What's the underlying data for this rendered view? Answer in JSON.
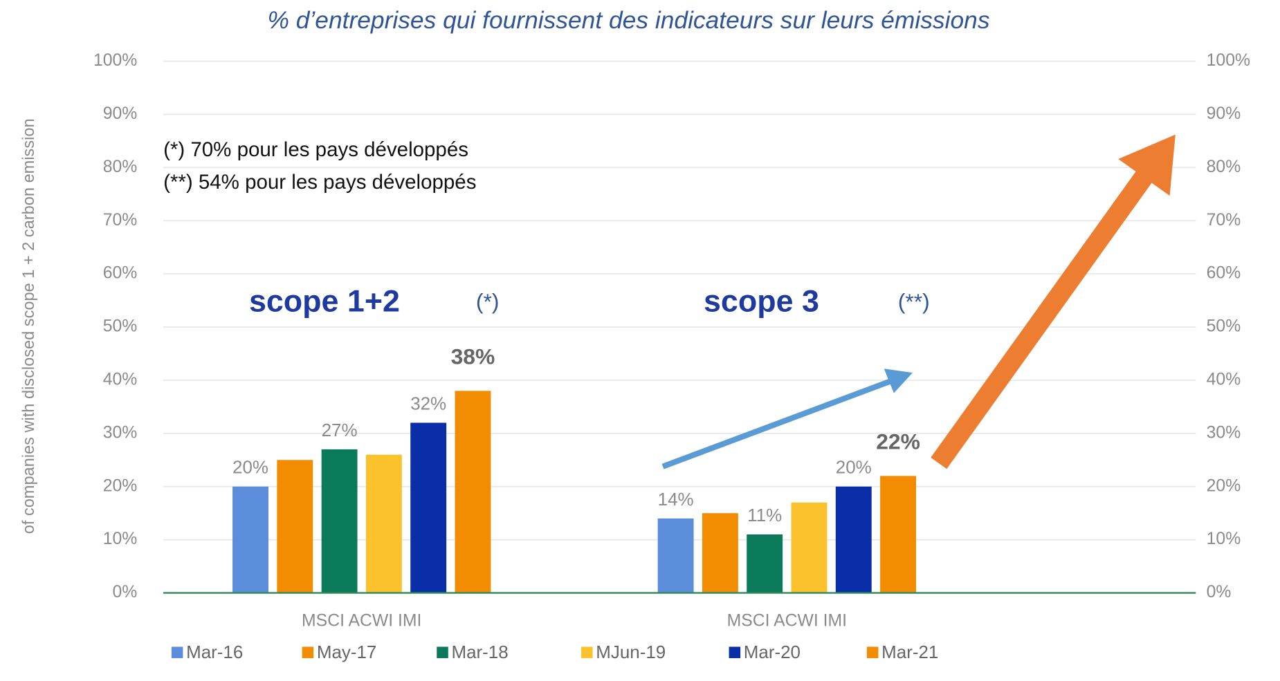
{
  "chart_data": {
    "type": "bar",
    "title": "% d’entreprises qui fournissent des indicateurs sur leurs émissions",
    "y_label": "of companies with disclosed scope 1 + 2 carbon emission",
    "annotations": [
      "(*) 70% pour les pays développés",
      "(**) 54% pour les pays développés",
      "scope 1+2",
      "(*)",
      "scope 3",
      "(**)"
    ],
    "categories": [
      "MSCI ACWI IMI",
      "MSCI ACWI IMI"
    ],
    "series": [
      {
        "name": "Mar-16",
        "color": "#5b8ddb",
        "values": [
          20,
          14
        ],
        "value_labels": [
          "20%",
          "14%"
        ]
      },
      {
        "name": "May-17",
        "color": "#f28c00",
        "values": [
          25,
          15
        ],
        "value_labels": [
          null,
          null
        ]
      },
      {
        "name": "Mar-18",
        "color": "#0b7a5a",
        "values": [
          27,
          11
        ],
        "value_labels": [
          "27%",
          "11%"
        ]
      },
      {
        "name": "MJun-19",
        "color": "#fbc22e",
        "values": [
          26,
          17
        ],
        "value_labels": [
          null,
          null
        ]
      },
      {
        "name": "Mar-20",
        "color": "#0a2ea8",
        "values": [
          32,
          20
        ],
        "value_labels": [
          "32%",
          "20%"
        ]
      },
      {
        "name": "Mar-21",
        "color": "#f28c00",
        "values": [
          38,
          22
        ],
        "value_labels": [
          "38%",
          "22%"
        ]
      }
    ],
    "ylim": [
      0,
      100
    ],
    "yticks": [
      {
        "value": 0,
        "label": "0%"
      },
      {
        "value": 10,
        "label": "10%"
      },
      {
        "value": 20,
        "label": "20%"
      },
      {
        "value": 30,
        "label": "30%"
      },
      {
        "value": 40,
        "label": "40%"
      },
      {
        "value": 50,
        "label": "50%"
      },
      {
        "value": 60,
        "label": "60%"
      },
      {
        "value": 70,
        "label": "70%"
      },
      {
        "value": 80,
        "label": "80%"
      },
      {
        "value": 90,
        "label": "90%"
      },
      {
        "value": 100,
        "label": "100%"
      }
    ],
    "y2lim": [
      0,
      100
    ],
    "y2ticks": [
      {
        "value": 0,
        "label": "0%"
      },
      {
        "value": 10,
        "label": "10%"
      },
      {
        "value": 20,
        "label": "20%"
      },
      {
        "value": 30,
        "label": "30%"
      },
      {
        "value": 40,
        "label": "40%"
      },
      {
        "value": 50,
        "label": "50%"
      },
      {
        "value": 60,
        "label": "60%"
      },
      {
        "value": 70,
        "label": "70%"
      },
      {
        "value": 80,
        "label": "80%"
      },
      {
        "value": 90,
        "label": "90%"
      },
      {
        "value": 100,
        "label": "100%"
      }
    ],
    "grid": true
  }
}
